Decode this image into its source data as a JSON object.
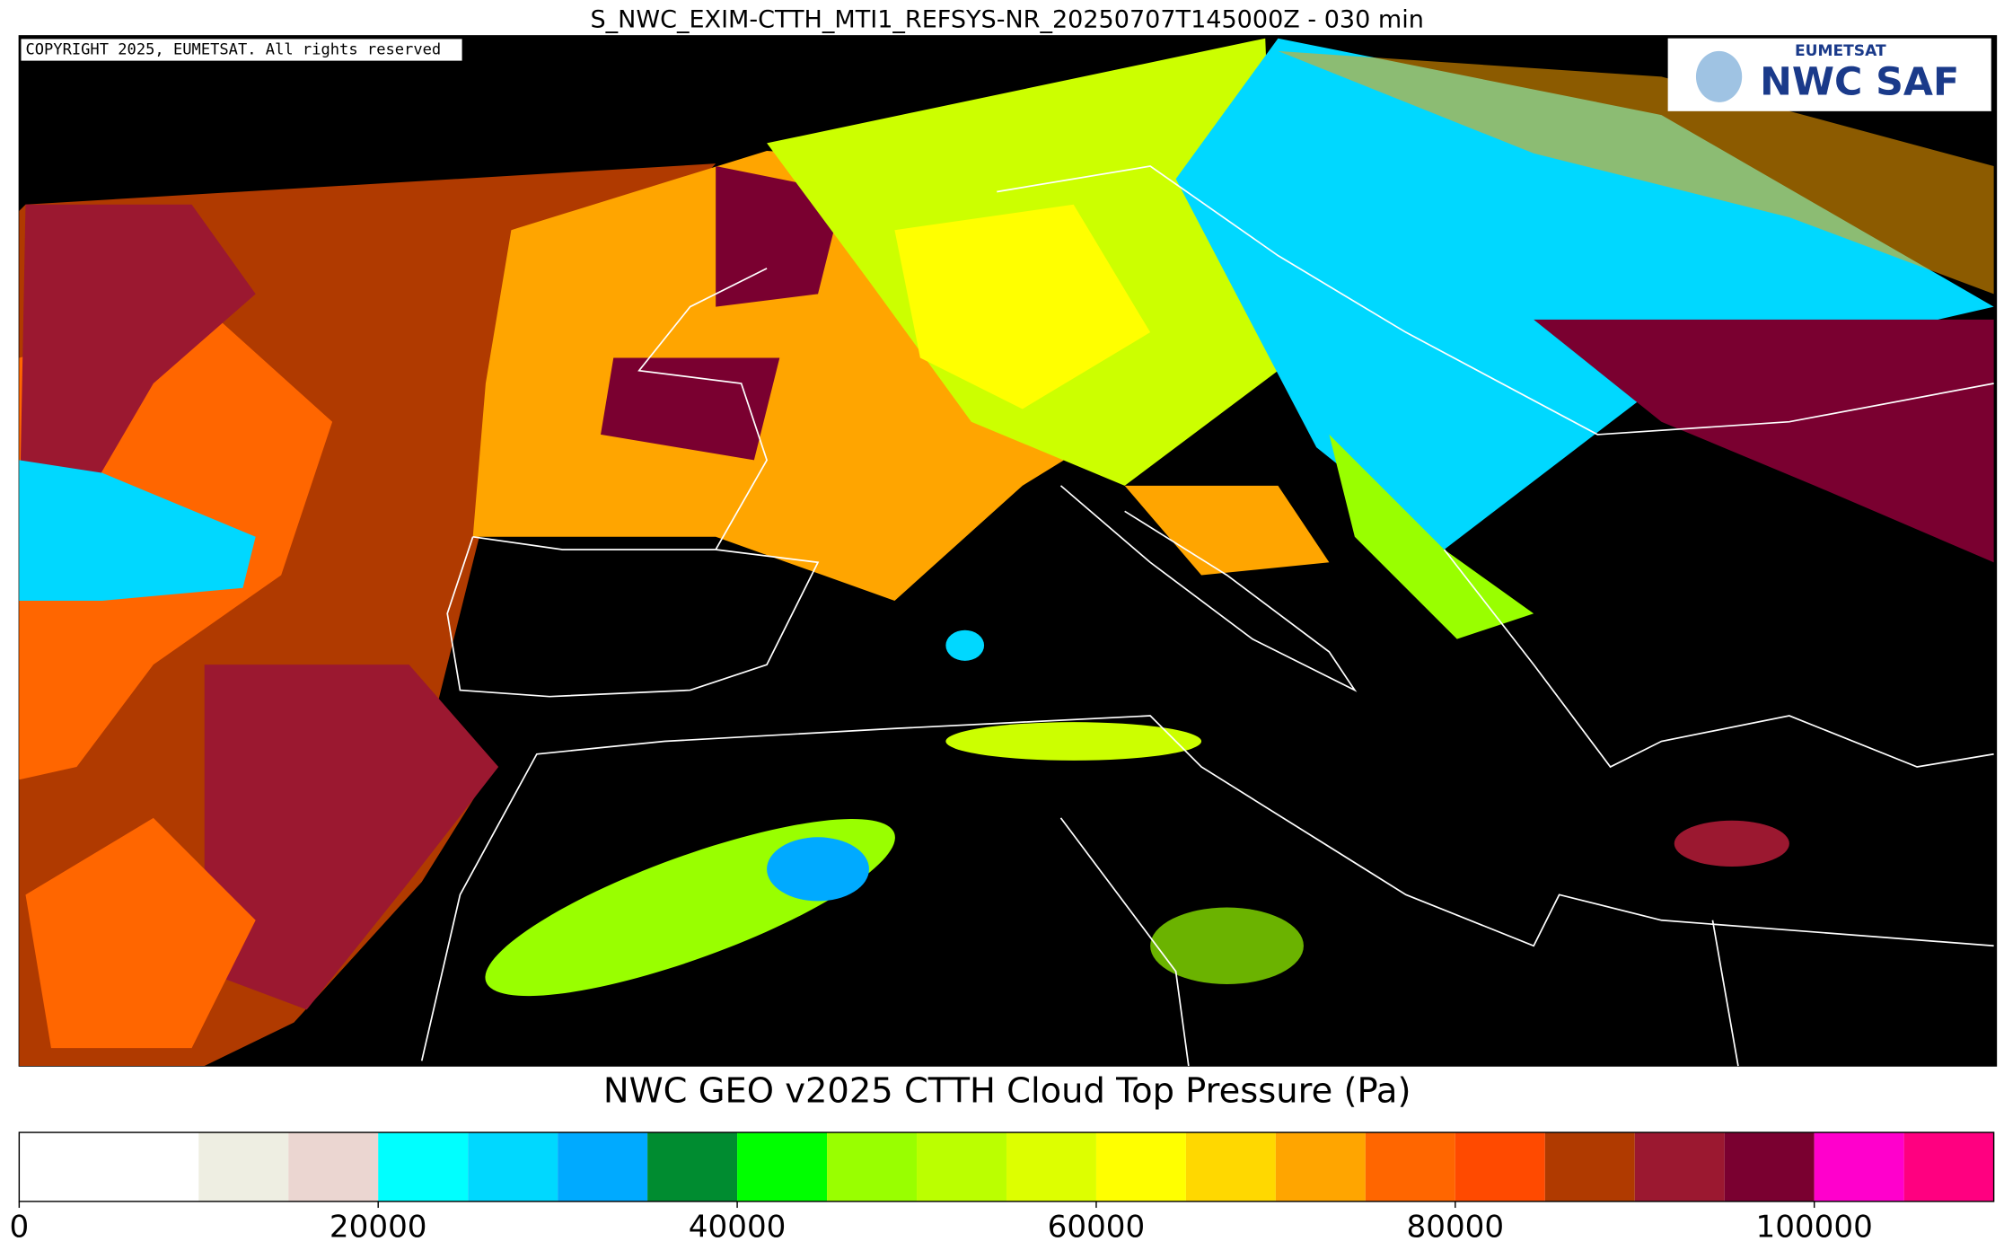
{
  "title": "S_NWC_EXIM-CTTH_MTI1_REFSYS-NR_20250707T145000Z - 030 min",
  "map": {
    "copyright": "COPYRIGHT 2025, EUMETSAT. All rights reserved",
    "logo": {
      "top": "EUMETSAT",
      "main": "NWC SAF"
    }
  },
  "colorbar": {
    "title": "NWC GEO v2025 CTTH Cloud Top Pressure (Pa)",
    "xlim": [
      0,
      110000
    ],
    "bins": [
      0,
      10000,
      15000,
      20000,
      25000,
      30000,
      35000,
      40000,
      45000,
      50000,
      55000,
      60000,
      65000,
      70000,
      75000,
      80000,
      85000,
      90000,
      95000,
      100000,
      105000,
      110000
    ],
    "colors": [
      "#ffffff",
      "#eeeee2",
      "#ebd6d1",
      "#00ffff",
      "#00d8ff",
      "#00aaff",
      "#008c30",
      "#00ff00",
      "#99ff00",
      "#bbff00",
      "#ddff00",
      "#ffff00",
      "#ffd800",
      "#ffa500",
      "#ff6600",
      "#ff4a00",
      "#b03a00",
      "#9b1830",
      "#7a0030",
      "#ff00cc",
      "#ff0080"
    ],
    "ticks": [
      0,
      20000,
      40000,
      60000,
      80000,
      100000
    ]
  }
}
